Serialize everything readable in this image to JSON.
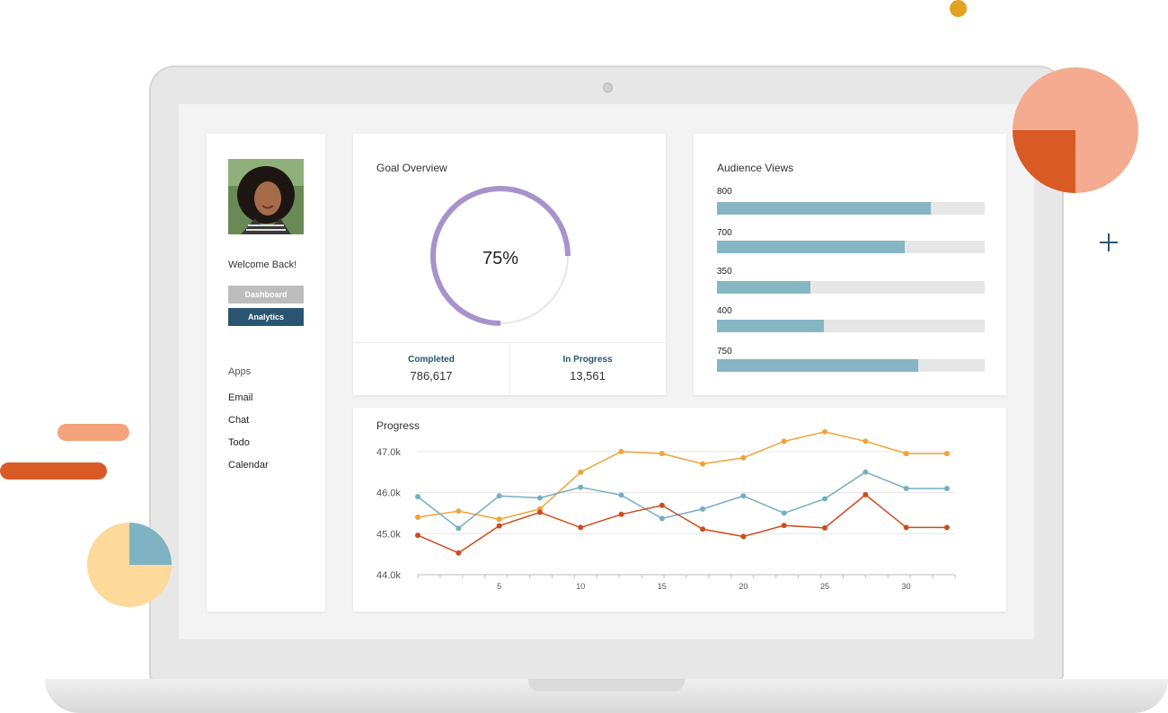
{
  "sidebar": {
    "welcome": "Welcome Back!",
    "buttons": [
      "Dashboard",
      "Analytics"
    ],
    "apps_heading": "Apps",
    "apps": [
      "Email",
      "Chat",
      "Todo",
      "Calendar"
    ]
  },
  "goal_overview": {
    "title": "Goal Overview",
    "progress_fraction": 0.75,
    "percent_label": "75%",
    "completed_label": "Completed",
    "completed_value": "786,617",
    "in_progress_label": "In Progress",
    "in_progress_value": "13,561"
  },
  "audience_views": {
    "title": "Audience Views",
    "max": 1000,
    "bars": [
      {
        "label": "800",
        "value": 800
      },
      {
        "label": "700",
        "value": 700
      },
      {
        "label": "350",
        "value": 350
      },
      {
        "label": "400",
        "value": 400
      },
      {
        "label": "750",
        "value": 750
      }
    ]
  },
  "colors": {
    "ring": "#a792cb",
    "ring_track": "#e6e6e6",
    "bar_fill": "#86b5c3",
    "bar_track": "#e6e6e7",
    "accent_dark": "#2a5470",
    "series_orange": "#efa337",
    "series_blue": "#75aec2",
    "series_red": "#cf4b1d"
  },
  "chart_data": {
    "type": "line",
    "title": "Progress",
    "xlabel": "",
    "ylabel": "",
    "xlim": [
      0,
      33
    ],
    "ylim": [
      44000,
      47500
    ],
    "x_ticks": [
      5,
      10,
      15,
      20,
      25,
      30
    ],
    "y_ticks": [
      {
        "value": 44000,
        "label": "44.0k"
      },
      {
        "value": 45000,
        "label": "45.0k"
      },
      {
        "value": 46000,
        "label": "46.0k"
      },
      {
        "value": 47000,
        "label": "47.0k"
      }
    ],
    "grid": true,
    "legend": "none",
    "x": [
      0,
      2.5,
      5,
      7.5,
      10,
      12.5,
      15,
      17.5,
      20,
      22.5,
      25,
      27.5,
      30,
      32.5
    ],
    "series": [
      {
        "color": "#efa337",
        "values": [
          45400,
          45550,
          45350,
          45600,
          46500,
          47000,
          46950,
          46700,
          46850,
          47250,
          47480,
          47250,
          46950,
          46950
        ]
      },
      {
        "color": "#75aec2",
        "values": [
          45900,
          45130,
          45920,
          45870,
          46130,
          45940,
          45370,
          45600,
          45920,
          45500,
          45850,
          46500,
          46100,
          46100
        ]
      },
      {
        "color": "#cf4b1d",
        "values": [
          44960,
          44530,
          45190,
          45520,
          45150,
          45470,
          45690,
          45110,
          44930,
          45200,
          45140,
          45950,
          45150,
          45150
        ]
      }
    ]
  }
}
